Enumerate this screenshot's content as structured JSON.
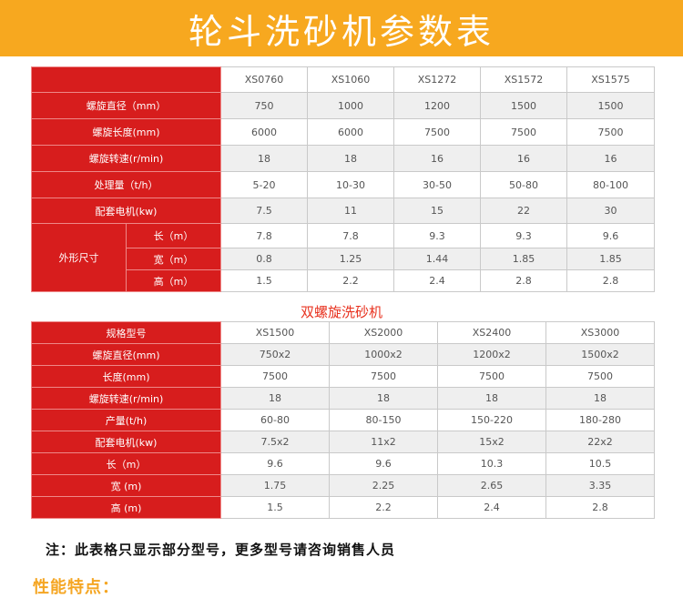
{
  "banner": {
    "title": "轮斗洗砂机参数表"
  },
  "table1": {
    "header": [
      "",
      "XS0760",
      "XS1060",
      "XS1272",
      "XS1572",
      "XS1575"
    ],
    "rows": [
      {
        "label": "螺旋直径（mm）",
        "values": [
          "750",
          "1000",
          "1200",
          "1500",
          "1500"
        ]
      },
      {
        "label": "螺旋长度(mm)",
        "values": [
          "6000",
          "6000",
          "7500",
          "7500",
          "7500"
        ]
      },
      {
        "label": "螺旋转速(r/min)",
        "values": [
          "18",
          "18",
          "16",
          "16",
          "16"
        ]
      },
      {
        "label": "处理量（t/h）",
        "values": [
          "5-20",
          "10-30",
          "30-50",
          "50-80",
          "80-100"
        ]
      },
      {
        "label": "配套电机(kw)",
        "values": [
          "7.5",
          "11",
          "15",
          "22",
          "30"
        ]
      }
    ],
    "dimension_group": "外形尺寸",
    "dimension_rows": [
      {
        "label": "长（m）",
        "values": [
          "7.8",
          "7.8",
          "9.3",
          "9.3",
          "9.6"
        ]
      },
      {
        "label": "宽（m）",
        "values": [
          "0.8",
          "1.25",
          "1.44",
          "1.85",
          "1.85"
        ]
      },
      {
        "label": "高（m）",
        "values": [
          "1.5",
          "2.2",
          "2.4",
          "2.8",
          "2.8"
        ]
      }
    ]
  },
  "subtitle": "双螺旋洗砂机",
  "table2": {
    "header_label": "规格型号",
    "header": [
      "XS1500",
      "XS2000",
      "XS2400",
      "XS3000"
    ],
    "rows": [
      {
        "label": "螺旋直径(mm)",
        "values": [
          "750x2",
          "1000x2",
          "1200x2",
          "1500x2"
        ]
      },
      {
        "label": "长度(mm)",
        "values": [
          "7500",
          "7500",
          "7500",
          "7500"
        ]
      },
      {
        "label": "螺旋转速(r/min)",
        "values": [
          "18",
          "18",
          "18",
          "18"
        ]
      },
      {
        "label": "产量(t/h)",
        "values": [
          "60-80",
          "80-150",
          "150-220",
          "180-280"
        ]
      },
      {
        "label": "配套电机(kw)",
        "values": [
          "7.5x2",
          "11x2",
          "15x2",
          "22x2"
        ]
      },
      {
        "label": "长（m）",
        "values": [
          "9.6",
          "9.6",
          "10.3",
          "10.5"
        ]
      },
      {
        "label": "宽 (m)",
        "values": [
          "1.75",
          "2.25",
          "2.65",
          "3.35"
        ]
      },
      {
        "label": "高 (m)",
        "values": [
          "1.5",
          "2.2",
          "2.4",
          "2.8"
        ]
      }
    ]
  },
  "note": "注：此表格只显示部分型号，更多型号请咨询销售人员",
  "section_heading": "性能特点："
}
